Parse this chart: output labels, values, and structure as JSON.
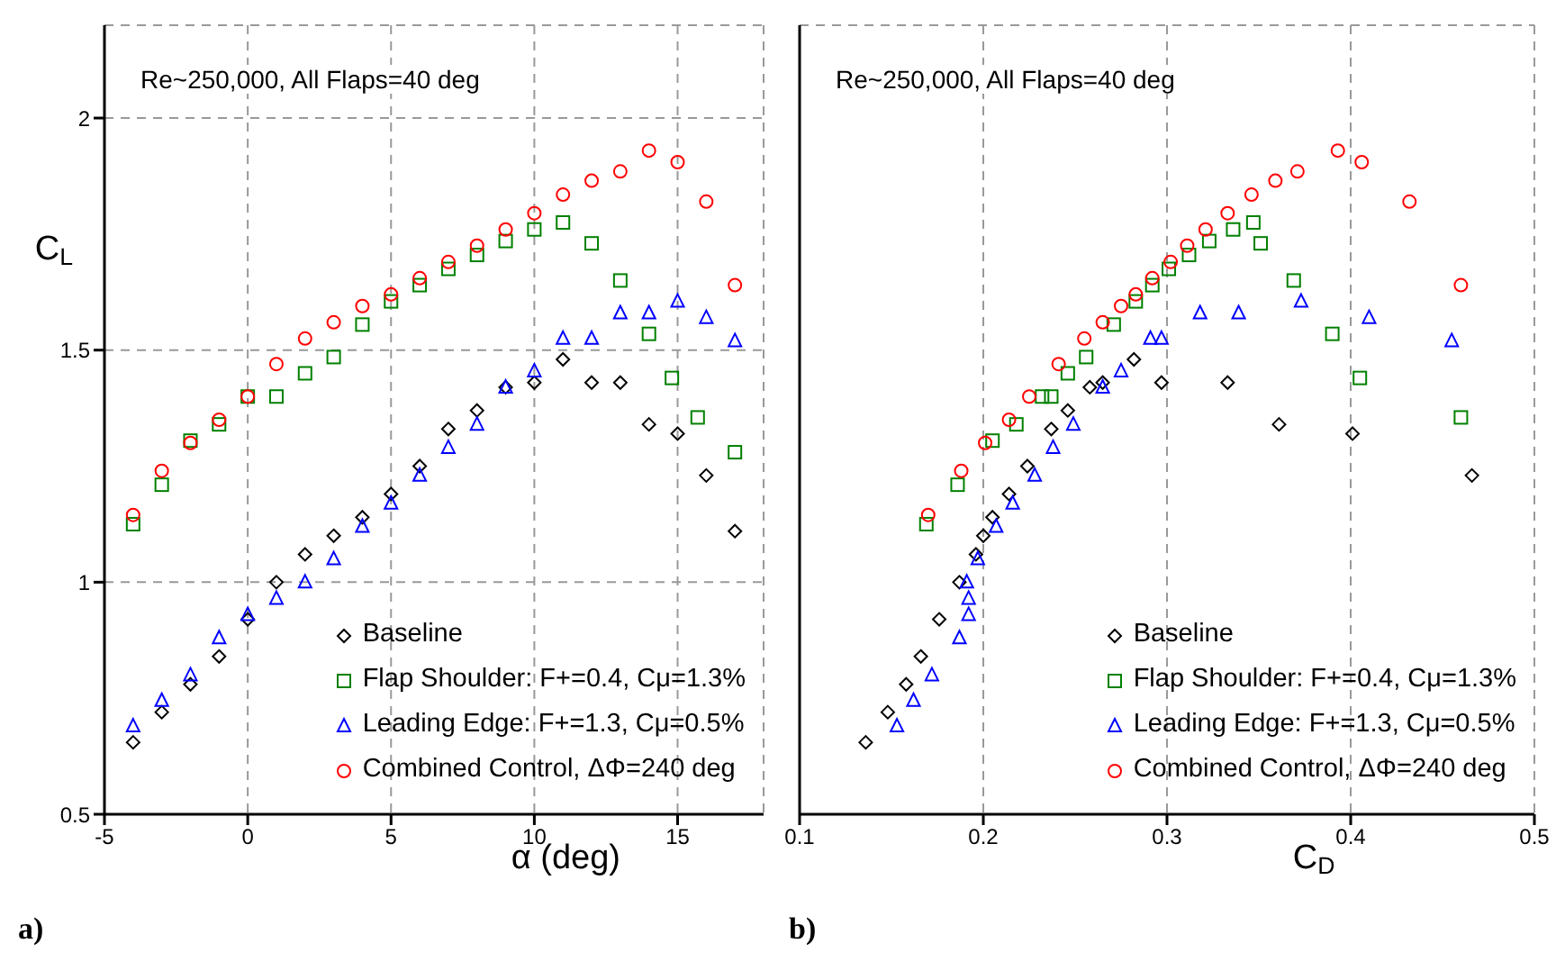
{
  "chart_data": [
    {
      "type": "scatter",
      "xlabel": "α (deg)",
      "ylabel": "C$_{L}$",
      "annotations": [
        "Re~250,000, All Flaps=40 deg",
        "a)"
      ],
      "xlim": [
        -5,
        18
      ],
      "xticks": [
        -5,
        0,
        5,
        10,
        15
      ],
      "ylim": [
        0.5,
        2.2
      ],
      "yticks": [
        0.5,
        1,
        1.5,
        2
      ],
      "grid": true,
      "legend": "bottom right",
      "series": [
        {
          "name": "Baseline",
          "color": "#000000",
          "marker": "diamond",
          "x": [
            -4,
            -3,
            -2,
            -1,
            0,
            1,
            2,
            3,
            4,
            5,
            6,
            7,
            8,
            9,
            10,
            11,
            12,
            13,
            14,
            15,
            16,
            17
          ],
          "values": [
            0.655,
            0.72,
            0.78,
            0.84,
            0.92,
            1.0,
            1.06,
            1.1,
            1.14,
            1.19,
            1.25,
            1.33,
            1.37,
            1.42,
            1.43,
            1.48,
            1.43,
            1.43,
            1.34,
            1.32,
            1.23,
            1.11
          ]
        },
        {
          "name": "Flap Shoulder: F+=0.4, Cμ=1.3%",
          "color": "#008000",
          "marker": "square",
          "x": [
            -4,
            -3,
            -2,
            -1,
            0,
            1,
            2,
            3,
            4,
            5,
            6,
            7,
            8,
            9,
            10,
            11,
            12,
            13,
            14,
            14.8,
            15.7,
            17
          ],
          "values": [
            1.125,
            1.21,
            1.305,
            1.34,
            1.4,
            1.4,
            1.45,
            1.485,
            1.555,
            1.605,
            1.64,
            1.675,
            1.705,
            1.735,
            1.76,
            1.775,
            1.73,
            1.65,
            1.535,
            1.44,
            1.355,
            1.28
          ]
        },
        {
          "name": "Leading Edge: F+=1.3, Cμ=0.5%",
          "color": "#0000ff",
          "marker": "triangle",
          "x": [
            -4,
            -3,
            -2,
            -1,
            0,
            1,
            2,
            3,
            4,
            5,
            6,
            7,
            8,
            9,
            10,
            11,
            12,
            13,
            14,
            15,
            16,
            17
          ],
          "values": [
            0.69,
            0.745,
            0.8,
            0.88,
            0.93,
            0.965,
            1.0,
            1.05,
            1.12,
            1.17,
            1.23,
            1.29,
            1.34,
            1.42,
            1.455,
            1.525,
            1.525,
            1.58,
            1.58,
            1.605,
            1.57,
            1.52
          ]
        },
        {
          "name": "Combined Control, ΔΦ=240 deg",
          "color": "#ff0000",
          "marker": "circle",
          "x": [
            -4,
            -3,
            -2,
            -1,
            0,
            1,
            2,
            3,
            4,
            5,
            6,
            7,
            8,
            9,
            10,
            11,
            12,
            13,
            14,
            15,
            16,
            17
          ],
          "values": [
            1.145,
            1.24,
            1.3,
            1.35,
            1.4,
            1.47,
            1.525,
            1.56,
            1.595,
            1.62,
            1.655,
            1.69,
            1.725,
            1.76,
            1.795,
            1.835,
            1.865,
            1.885,
            1.93,
            1.905,
            1.82,
            1.64
          ]
        }
      ]
    },
    {
      "type": "scatter",
      "xlabel": "C$_{D}$",
      "annotations": [
        "Re~250,000, All Flaps=40 deg",
        "b)"
      ],
      "xlim": [
        0.1,
        0.5
      ],
      "xticks": [
        0.1,
        0.2,
        0.3,
        0.4,
        0.5
      ],
      "ylim": [
        0.5,
        2.2
      ],
      "yticks": [
        0.5,
        1,
        1.5,
        2
      ],
      "tick_labels": "x",
      "grid": true,
      "legend": "bottom right",
      "series": [
        {
          "name": "Baseline",
          "color": "#000000",
          "marker": "diamond",
          "x": [
            0.136,
            0.148,
            0.158,
            0.166,
            0.176,
            0.187,
            0.196,
            0.2,
            0.205,
            0.214,
            0.224,
            0.237,
            0.246,
            0.258,
            0.265,
            0.282,
            0.297,
            0.333,
            0.361,
            0.401,
            0.466
          ],
          "values": [
            0.655,
            0.72,
            0.78,
            0.84,
            0.92,
            1.0,
            1.06,
            1.1,
            1.14,
            1.19,
            1.25,
            1.33,
            1.37,
            1.42,
            1.43,
            1.48,
            1.43,
            1.43,
            1.34,
            1.32,
            1.23
          ]
        },
        {
          "name": "Flap Shoulder: F+=0.4, Cμ=1.3%",
          "color": "#008000",
          "marker": "square",
          "x": [
            0.169,
            0.186,
            0.205,
            0.218,
            0.232,
            0.237,
            0.246,
            0.256,
            0.271,
            0.283,
            0.292,
            0.301,
            0.312,
            0.323,
            0.336,
            0.347,
            0.351,
            0.369,
            0.39,
            0.405,
            0.46
          ],
          "values": [
            1.125,
            1.21,
            1.305,
            1.34,
            1.4,
            1.4,
            1.45,
            1.485,
            1.555,
            1.605,
            1.64,
            1.675,
            1.705,
            1.735,
            1.76,
            1.775,
            1.73,
            1.65,
            1.535,
            1.44,
            1.355
          ]
        },
        {
          "name": "Leading Edge: F+=1.3, Cμ=0.5%",
          "color": "#0000ff",
          "marker": "triangle",
          "x": [
            0.153,
            0.162,
            0.172,
            0.187,
            0.192,
            0.192,
            0.191,
            0.197,
            0.207,
            0.216,
            0.228,
            0.238,
            0.249,
            0.265,
            0.275,
            0.291,
            0.297,
            0.318,
            0.339,
            0.373,
            0.41,
            0.455
          ],
          "values": [
            0.69,
            0.745,
            0.8,
            0.88,
            0.93,
            0.965,
            1.0,
            1.05,
            1.12,
            1.17,
            1.23,
            1.29,
            1.34,
            1.42,
            1.455,
            1.525,
            1.525,
            1.58,
            1.58,
            1.605,
            1.57,
            1.52
          ]
        },
        {
          "name": "Combined Control, ΔΦ=240 deg",
          "color": "#ff0000",
          "marker": "circle",
          "x": [
            0.17,
            0.188,
            0.201,
            0.214,
            0.225,
            0.241,
            0.255,
            0.265,
            0.275,
            0.283,
            0.292,
            0.302,
            0.311,
            0.321,
            0.333,
            0.346,
            0.359,
            0.371,
            0.393,
            0.406,
            0.432,
            0.46
          ],
          "values": [
            1.145,
            1.24,
            1.3,
            1.35,
            1.4,
            1.47,
            1.525,
            1.56,
            1.595,
            1.62,
            1.655,
            1.69,
            1.725,
            1.76,
            1.795,
            1.835,
            1.865,
            1.885,
            1.93,
            1.905,
            1.82,
            1.64
          ]
        }
      ]
    }
  ]
}
